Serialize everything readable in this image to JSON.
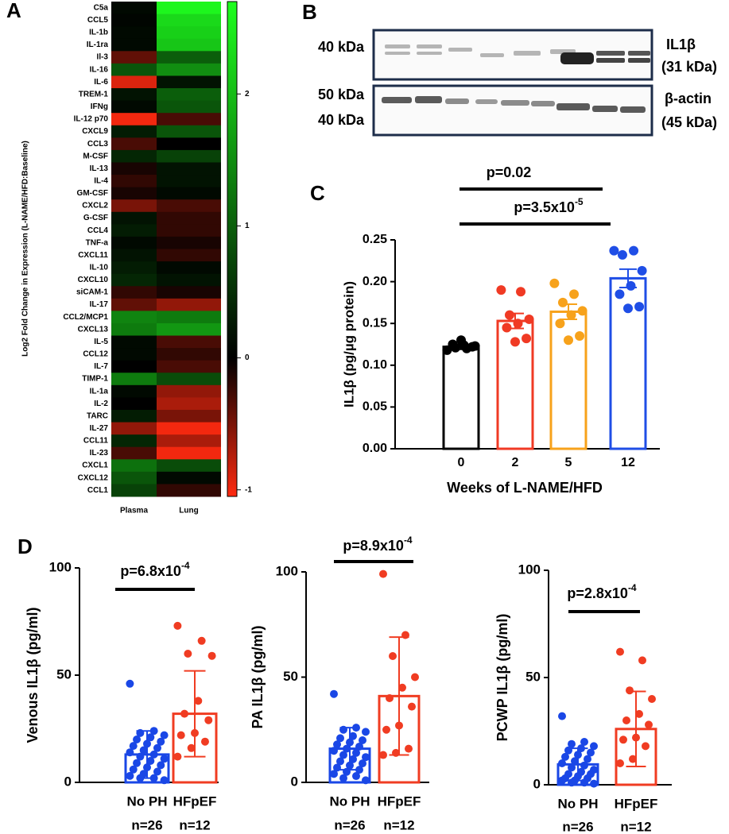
{
  "panel_labels": [
    "A",
    "B",
    "C",
    "D"
  ],
  "blot": {
    "top": {
      "marker": "40 kDa",
      "protein": "IL1β",
      "size": "(31 kDa)"
    },
    "bottom": {
      "markers": [
        "50 kDa",
        "40 kDa"
      ],
      "protein": "β-actin",
      "size": "(45 kDa)"
    }
  },
  "chart_data": [
    {
      "type": "heatmap",
      "y_label": "Log2 Fold Change in Expression (L-NAME/HFD:Baseline)",
      "x_categories": [
        "Plasma",
        "Lung"
      ],
      "y_categories": [
        "C5a",
        "CCL5",
        "IL-1b",
        "IL-1ra",
        "Il-3",
        "IL-16",
        "IL-6",
        "TREM-1",
        "IFNg",
        "IL-12 p70",
        "CXCL9",
        "CCL3",
        "M-CSF",
        "IL-13",
        "IL-4",
        "GM-CSF",
        "CXCL2",
        "G-CSF",
        "CCL4",
        "TNF-a",
        "CXCL11",
        "IL-10",
        "CXCL10",
        "siCAM-1",
        "IL-17",
        "CCL2/MCP1",
        "CXCL13",
        "IL-5",
        "CCL12",
        "IL-7",
        "TIMP-1",
        "IL-1a",
        "IL-2",
        "TARC",
        "IL-27",
        "CCL11",
        "IL-23",
        "CXCL1",
        "CXCL12",
        "CCL1"
      ],
      "values": [
        [
          0.1,
          2.6
        ],
        [
          0.05,
          2.3
        ],
        [
          0.1,
          2.2
        ],
        [
          0.1,
          2.1
        ],
        [
          -0.4,
          1.0
        ],
        [
          0.9,
          1.5
        ],
        [
          -0.9,
          0.2
        ],
        [
          0.2,
          1.0
        ],
        [
          0.1,
          0.9
        ],
        [
          -1.0,
          -0.3
        ],
        [
          0.3,
          0.9
        ],
        [
          -0.3,
          0.0
        ],
        [
          0.4,
          0.7
        ],
        [
          -0.1,
          0.2
        ],
        [
          -0.2,
          0.2
        ],
        [
          -0.1,
          0.1
        ],
        [
          -0.5,
          -0.3
        ],
        [
          0.2,
          -0.2
        ],
        [
          0.3,
          -0.2
        ],
        [
          0.1,
          -0.1
        ],
        [
          0.2,
          -0.2
        ],
        [
          0.3,
          0.1
        ],
        [
          0.4,
          0.2
        ],
        [
          -0.2,
          -0.1
        ],
        [
          -0.4,
          -0.6
        ],
        [
          1.4,
          1.3
        ],
        [
          1.3,
          1.6
        ],
        [
          0.1,
          -0.3
        ],
        [
          0.1,
          -0.2
        ],
        [
          0.0,
          -0.3
        ],
        [
          1.3,
          0.8
        ],
        [
          0.1,
          -0.6
        ],
        [
          0.0,
          -0.7
        ],
        [
          0.3,
          -0.5
        ],
        [
          -0.6,
          -1.0
        ],
        [
          0.4,
          -0.7
        ],
        [
          -0.3,
          -1.0
        ],
        [
          1.2,
          0.8
        ],
        [
          0.9,
          0.1
        ],
        [
          0.7,
          -0.2
        ]
      ],
      "colorbar_lim": [
        -1.05,
        2.7
      ],
      "colorbar_ticks": [
        -1,
        0,
        1,
        2
      ],
      "colors": [
        "#ff2a10",
        "#000000",
        "#1eff1e"
      ]
    },
    {
      "type": "bar",
      "y_label": "IL1β (pg/µg protein)",
      "x_label": "Weeks of L-NAME/HFD",
      "categories": [
        "0",
        "2",
        "5",
        "12"
      ],
      "colors": [
        "#000000",
        "#f03a24",
        "#f7a21b",
        "#1f4ee6"
      ],
      "values": [
        0.122,
        0.153,
        0.164,
        0.204
      ],
      "errors": [
        0.003,
        0.009,
        0.009,
        0.011
      ],
      "points": [
        [
          0.118,
          0.12,
          0.121,
          0.123,
          0.124,
          0.125,
          0.122,
          0.13
        ],
        [
          0.19,
          0.188,
          0.16,
          0.155,
          0.15,
          0.145,
          0.132,
          0.128
        ],
        [
          0.198,
          0.185,
          0.175,
          0.165,
          0.16,
          0.15,
          0.135,
          0.13
        ],
        [
          0.237,
          0.237,
          0.232,
          0.213,
          0.195,
          0.185,
          0.17,
          0.168
        ]
      ],
      "ylim": [
        0,
        0.25
      ],
      "yticks": [
        {
          "value": 0,
          "label": "0.00"
        },
        0.05,
        {
          "value": 0.1,
          "label": "0.10"
        },
        0.15,
        {
          "value": 0.2,
          "label": "0.20"
        },
        0.25
      ],
      "annotations": [
        {
          "text": "p=0.02"
        },
        {
          "text": "p=3.5x10",
          "sup": "-5"
        }
      ]
    },
    {
      "type": "bar",
      "y_label": "Venous IL1β (pg/ml)",
      "categories": [
        "No PH",
        "HFpEF"
      ],
      "n_labels": [
        "n=26",
        "n=12"
      ],
      "colors": [
        "#1a47e6",
        "#f03c22"
      ],
      "values": [
        13,
        32
      ],
      "errors": [
        11,
        20
      ],
      "points": [
        [
          46,
          24,
          23,
          22,
          21,
          20,
          19,
          18,
          17,
          16,
          15,
          14,
          13,
          12,
          11,
          10,
          9,
          8,
          7,
          6,
          5,
          4,
          3,
          2,
          2,
          1
        ],
        [
          73,
          66,
          60,
          59,
          38,
          32,
          29,
          23,
          22,
          19,
          16,
          12
        ]
      ],
      "ylim": [
        0,
        100
      ],
      "yticks": [
        0,
        50,
        100
      ],
      "annotations": [
        {
          "text": "p=6.8x10",
          "sup": "-4"
        }
      ]
    },
    {
      "type": "bar",
      "y_label": "PA IL1β (pg/ml)",
      "categories": [
        "No PH",
        "HFpEF"
      ],
      "n_labels": [
        "n=26",
        "n=12"
      ],
      "colors": [
        "#1a47e6",
        "#f03c22"
      ],
      "values": [
        16,
        41
      ],
      "errors": [
        10,
        28
      ],
      "points": [
        [
          42,
          26,
          25,
          24,
          22,
          21,
          20,
          19,
          18,
          17,
          16,
          15,
          14,
          13,
          12,
          11,
          10,
          9,
          8,
          7,
          6,
          5,
          4,
          3,
          2,
          1
        ],
        [
          99,
          70,
          60,
          50,
          45,
          40,
          36,
          27,
          25,
          16,
          14,
          13
        ]
      ],
      "ylim": [
        0,
        100
      ],
      "yticks": [
        0,
        50,
        100
      ],
      "annotations": [
        {
          "text": "p=8.9x10",
          "sup": "-4"
        }
      ]
    },
    {
      "type": "bar",
      "y_label": "PCWP IL1β (pg/ml)",
      "categories": [
        "No PH",
        "HFpEF"
      ],
      "n_labels": [
        "n=26",
        "n=12"
      ],
      "colors": [
        "#1a47e6",
        "#f03c22"
      ],
      "values": [
        9.5,
        26
      ],
      "errors": [
        7.5,
        17.5
      ],
      "points": [
        [
          32,
          20,
          19,
          18,
          17,
          16,
          15,
          14,
          13,
          12,
          11,
          10,
          9,
          8,
          7,
          6,
          5,
          5,
          4,
          3,
          3,
          2,
          2,
          1,
          1,
          0.5
        ],
        [
          62,
          58,
          44,
          40,
          33,
          30,
          28,
          22,
          21,
          18,
          12,
          10
        ]
      ],
      "ylim": [
        0,
        100
      ],
      "yticks": [
        0,
        50,
        100
      ],
      "annotations": [
        {
          "text": "p=2.8x10",
          "sup": "-4"
        }
      ]
    }
  ]
}
